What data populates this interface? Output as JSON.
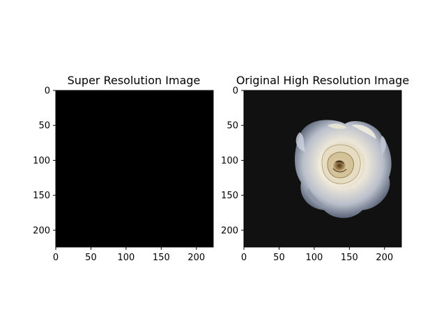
{
  "chart_data": [
    {
      "type": "image",
      "title": "Super Resolution Image",
      "image_content": "solid black image",
      "xlim": [
        0,
        224
      ],
      "ylim": [
        224,
        0
      ],
      "xticks": [
        0,
        50,
        100,
        150,
        200
      ],
      "yticks": [
        0,
        50,
        100,
        150,
        200
      ],
      "colors": {
        "fill": "#000000"
      }
    },
    {
      "type": "image",
      "title": "Original High Resolution Image",
      "image_content": "white rose on a dark background",
      "xlim": [
        0,
        224
      ],
      "ylim": [
        224,
        0
      ],
      "xticks": [
        0,
        50,
        100,
        150,
        200
      ],
      "yticks": [
        0,
        50,
        100,
        150,
        200
      ],
      "colors": {
        "background": "#111111",
        "petal_light": "#e8e2d2",
        "petal_shadow": "#5b6578",
        "center": "#8a6a3c"
      }
    }
  ]
}
